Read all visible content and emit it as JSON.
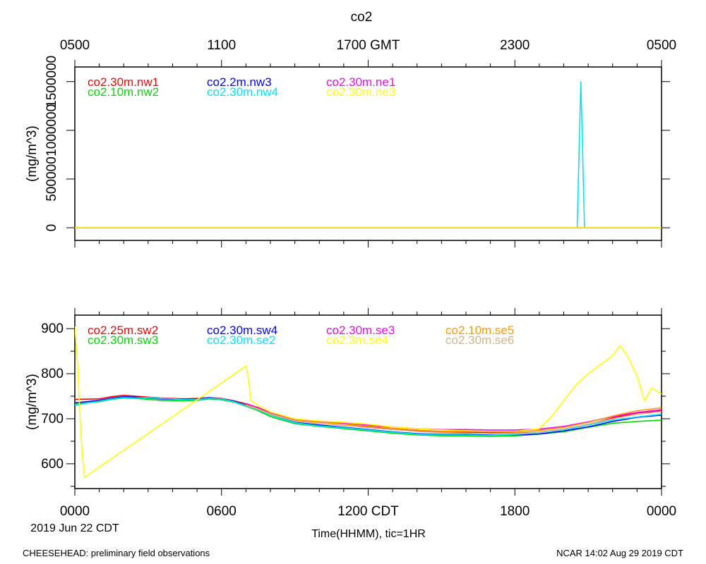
{
  "title": "co2",
  "top_axis": {
    "labels": [
      "0500",
      "1100",
      "1700 GMT",
      "2300",
      "0500"
    ],
    "hours": [
      0,
      6,
      12,
      18,
      24
    ]
  },
  "bottom_axis": {
    "labels": [
      "0000",
      "0600",
      "1200 CDT",
      "1800",
      "0000"
    ],
    "hours": [
      0,
      6,
      12,
      18,
      24
    ],
    "date_label": "2019 Jun 22 CDT",
    "xlabel": "Time(HHMM), tic=1HR"
  },
  "footer": {
    "left": "CHEESEHEAD: preliminary field observations",
    "right": "NCAR 14:02 Aug 29 2019 CDT"
  },
  "chart_data": [
    {
      "type": "line",
      "ylabel": "(mg/m^3)",
      "ylim": [
        -130000,
        1650000
      ],
      "yticks": [
        0,
        500000,
        1000000,
        1500000
      ],
      "ytick_labels": [
        "0",
        "500000",
        "1000000",
        "1500000"
      ],
      "xlim": [
        0,
        24
      ],
      "reference_line": 0,
      "series": [
        {
          "name": "co2.30m.nw1",
          "color": "#ff0000",
          "x": [
            0,
            24
          ],
          "y": [
            700,
            700
          ]
        },
        {
          "name": "co2.10m.nw2",
          "color": "#00dd00",
          "x": [
            0,
            24
          ],
          "y": [
            700,
            700
          ]
        },
        {
          "name": "co2.2m.nw3",
          "color": "#0000ff",
          "x": [
            0,
            24
          ],
          "y": [
            700,
            700
          ]
        },
        {
          "name": "co2.30m.nw4",
          "color": "#00e5ff",
          "x": [
            0,
            20.55,
            20.65,
            20.7,
            20.75,
            20.85,
            24
          ],
          "y": [
            700,
            700,
            1000000,
            1500000,
            1000000,
            700,
            700
          ]
        },
        {
          "name": "co2.30m.ne1",
          "color": "#ff00ff",
          "x": [
            0,
            24
          ],
          "y": [
            700,
            700
          ]
        },
        {
          "name": "co2.30m.ne3",
          "color": "#ffff00",
          "x": [
            0,
            24
          ],
          "y": [
            700,
            700
          ]
        }
      ]
    },
    {
      "type": "line",
      "ylabel": "(mg/m^3)",
      "ylim": [
        545,
        930
      ],
      "yticks": [
        600,
        700,
        800,
        900
      ],
      "ytick_labels": [
        "600",
        "700",
        "800",
        "900"
      ],
      "xlim": [
        0,
        24
      ],
      "series": [
        {
          "name": "co2.25m.sw2",
          "color": "#ff0000",
          "x": [
            0,
            1,
            1.5,
            2,
            2.5,
            3,
            3.5,
            4,
            4.5,
            5,
            5.5,
            6,
            6.5,
            7,
            7.5,
            8,
            9,
            10,
            11,
            12,
            13,
            14,
            15,
            16,
            17,
            18,
            19,
            20,
            21,
            22,
            23,
            24
          ],
          "y": [
            743,
            744,
            749,
            752,
            750,
            748,
            746,
            745,
            744,
            745,
            747,
            745,
            740,
            733,
            725,
            713,
            698,
            693,
            688,
            683,
            678,
            673,
            670,
            670,
            669,
            668,
            670,
            677,
            687,
            702,
            713,
            718
          ]
        },
        {
          "name": "co2.30m.sw3",
          "color": "#00dd00",
          "x": [
            0,
            1,
            1.5,
            2,
            2.5,
            3,
            3.5,
            4,
            4.5,
            5,
            5.5,
            6,
            6.5,
            7,
            7.5,
            8,
            9,
            10,
            11,
            12,
            13,
            14,
            15,
            16,
            17,
            18,
            19,
            20,
            21,
            22,
            23,
            24
          ],
          "y": [
            732,
            738,
            743,
            746,
            745,
            743,
            741,
            740,
            740,
            741,
            744,
            742,
            737,
            728,
            718,
            705,
            689,
            683,
            678,
            673,
            668,
            664,
            662,
            662,
            661,
            662,
            666,
            671,
            681,
            690,
            694,
            697
          ]
        },
        {
          "name": "co2.30m.sw4",
          "color": "#0000ff",
          "x": [
            0,
            1,
            1.5,
            2,
            2.5,
            3,
            3.5,
            4,
            4.5,
            5,
            5.5,
            6,
            6.5,
            7,
            7.5,
            8,
            9,
            10,
            11,
            12,
            13,
            14,
            15,
            16,
            17,
            18,
            19,
            20,
            21,
            22,
            23,
            24
          ],
          "y": [
            735,
            741,
            746,
            749,
            748,
            746,
            744,
            743,
            743,
            744,
            746,
            744,
            739,
            730,
            721,
            709,
            692,
            686,
            681,
            676,
            671,
            667,
            665,
            665,
            664,
            664,
            666,
            673,
            682,
            694,
            703,
            708
          ]
        },
        {
          "name": "co2.30m.se2",
          "color": "#00e5ff",
          "x": [
            0,
            1,
            1.5,
            2,
            2.5,
            3,
            3.5,
            4,
            4.5,
            5,
            5.5,
            6,
            6.5,
            7,
            7.5,
            8,
            9,
            10,
            11,
            12,
            13,
            14,
            15,
            16,
            17,
            18,
            19,
            20,
            21,
            22,
            23,
            24
          ],
          "y": [
            730,
            739,
            744,
            747,
            746,
            747,
            745,
            744,
            742,
            743,
            745,
            744,
            738,
            729,
            720,
            708,
            691,
            684,
            680,
            675,
            670,
            666,
            664,
            664,
            663,
            665,
            669,
            675,
            686,
            697,
            704,
            710
          ]
        },
        {
          "name": "co2.30m.se3",
          "color": "#ff00ff",
          "x": [
            7,
            7.5,
            8,
            9,
            10,
            11,
            12,
            13,
            14,
            15,
            16,
            17,
            18,
            19,
            20,
            21,
            22,
            23,
            24
          ],
          "y": [
            734,
            724,
            713,
            699,
            694,
            690,
            686,
            682,
            678,
            676,
            676,
            675,
            675,
            677,
            683,
            693,
            705,
            714,
            720
          ]
        },
        {
          "name": "co2.3m.se4",
          "color": "#ffff00",
          "x": [
            0,
            0.1,
            0.2,
            0.3,
            0.4,
            7.0,
            7.1,
            7.2,
            7.5,
            8,
            9,
            10,
            11,
            12,
            13,
            14,
            15,
            16,
            17,
            18,
            19,
            19.5,
            20,
            20.5,
            21,
            21.5,
            22,
            22.3,
            22.6,
            23,
            23.3,
            23.6,
            24
          ],
          "y": [
            905,
            830,
            720,
            620,
            570,
            817,
            790,
            740,
            730,
            715,
            700,
            695,
            692,
            688,
            682,
            678,
            675,
            673,
            672,
            672,
            678,
            705,
            740,
            775,
            800,
            820,
            840,
            862,
            840,
            795,
            740,
            768,
            755
          ]
        },
        {
          "name": "co2.10m.se5",
          "color": "#ff9900",
          "x": [
            7,
            7.5,
            8,
            9,
            10,
            11,
            12,
            13,
            14,
            15,
            16,
            17,
            18,
            19,
            20,
            21,
            22,
            23,
            24
          ],
          "y": [
            731,
            722,
            711,
            697,
            692,
            688,
            684,
            679,
            675,
            672,
            672,
            671,
            671,
            674,
            681,
            692,
            706,
            718,
            724
          ]
        },
        {
          "name": "co2.30m.se6",
          "color": "#d2b48c",
          "x": [
            7,
            7.5,
            8,
            9,
            10,
            11,
            12,
            13,
            14,
            15,
            16,
            17,
            18,
            19,
            20,
            21,
            22,
            23,
            24
          ],
          "y": [
            730,
            721,
            710,
            695,
            689,
            685,
            680,
            676,
            672,
            669,
            668,
            667,
            667,
            670,
            677,
            688,
            700,
            710,
            716
          ]
        }
      ]
    }
  ]
}
